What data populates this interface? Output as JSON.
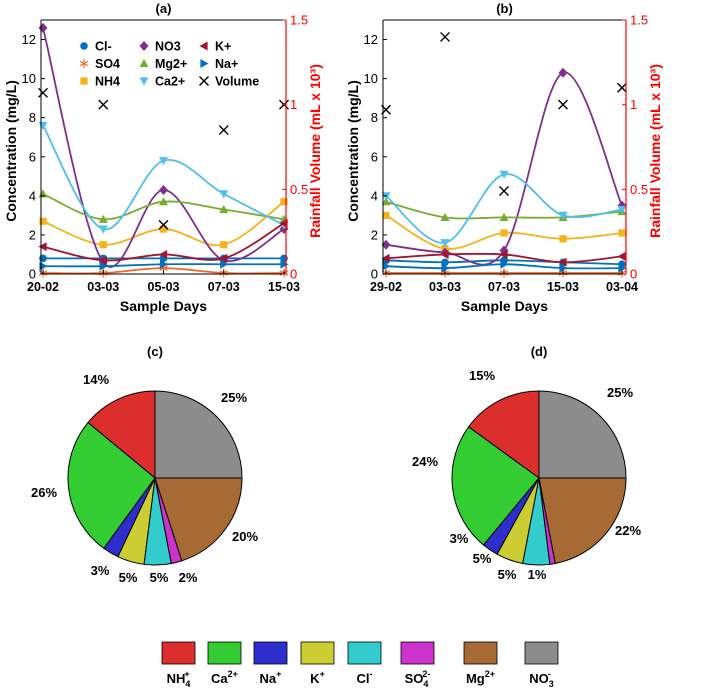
{
  "chart_data": [
    {
      "panel": "(a)",
      "type": "line",
      "title": "(a)",
      "xlabel": "Sample Days",
      "ylabel": "Concentration (mg/L)",
      "y2label": "Rainfall Volume (mL x 10³)",
      "categories": [
        "20-02",
        "03-03",
        "05-03",
        "07-03",
        "15-03"
      ],
      "ylim": [
        0,
        13
      ],
      "yticks": [
        0,
        2,
        4,
        6,
        8,
        10,
        12
      ],
      "y2lim": [
        0,
        1.5
      ],
      "y2ticks": [
        0,
        0.5,
        1,
        1.5
      ],
      "y2ticklabels": [
        "0",
        "0.5",
        "1",
        "1.5"
      ],
      "legend": "top",
      "series": [
        {
          "name": "Cl-",
          "values": [
            0.8,
            0.8,
            0.8,
            0.8,
            0.8
          ]
        },
        {
          "name": "SO4",
          "values": [
            0.05,
            0.05,
            0.3,
            0.05,
            0.05
          ]
        },
        {
          "name": "NH4",
          "values": [
            2.7,
            1.5,
            2.3,
            1.5,
            3.7
          ]
        },
        {
          "name": "NO3",
          "values": [
            12.6,
            0.6,
            4.3,
            0.7,
            2.3
          ]
        },
        {
          "name": "Mg2+",
          "values": [
            4.1,
            2.8,
            3.7,
            3.3,
            2.8
          ]
        },
        {
          "name": "Ca2+",
          "values": [
            7.6,
            2.3,
            5.8,
            4.1,
            2.5
          ]
        },
        {
          "name": "K+",
          "values": [
            1.4,
            0.7,
            1.0,
            0.8,
            2.6
          ]
        },
        {
          "name": "Na+",
          "values": [
            0.4,
            0.4,
            0.5,
            0.5,
            0.5
          ]
        },
        {
          "name": "Volume",
          "axis": "right",
          "values": [
            1.07,
            1.0,
            0.29,
            0.85,
            1.0
          ]
        }
      ]
    },
    {
      "panel": "(b)",
      "type": "line",
      "title": "(b)",
      "xlabel": "Sample Days",
      "ylabel": "Concentration (mg/L)",
      "y2label": "Rainfall Volume (mL x 10³)",
      "categories": [
        "29-02",
        "03-03",
        "07-03",
        "15-03",
        "03-04"
      ],
      "ylim": [
        0,
        13
      ],
      "yticks": [
        0,
        2,
        4,
        6,
        8,
        10,
        12
      ],
      "y2lim": [
        0,
        1.5
      ],
      "y2ticks": [
        0,
        0.5,
        1,
        1.5
      ],
      "y2ticklabels": [
        "0",
        "0.5",
        "1",
        "1.5"
      ],
      "series": [
        {
          "name": "Cl-",
          "values": [
            0.7,
            0.6,
            0.7,
            0.6,
            0.5
          ]
        },
        {
          "name": "SO4",
          "values": [
            0.05,
            0.05,
            0.05,
            0.05,
            0.05
          ]
        },
        {
          "name": "NH4",
          "values": [
            3.0,
            1.3,
            2.1,
            1.8,
            2.1
          ]
        },
        {
          "name": "NO3",
          "values": [
            1.5,
            1.1,
            1.2,
            10.3,
            3.5
          ]
        },
        {
          "name": "Mg2+",
          "values": [
            3.7,
            2.9,
            2.9,
            2.9,
            3.2
          ]
        },
        {
          "name": "Ca2+",
          "values": [
            4.0,
            1.6,
            5.1,
            3.0,
            3.3
          ]
        },
        {
          "name": "K+",
          "values": [
            0.8,
            1.0,
            1.0,
            0.6,
            0.9
          ]
        },
        {
          "name": "Na+",
          "values": [
            0.4,
            0.3,
            0.5,
            0.3,
            0.3
          ]
        },
        {
          "name": "Volume",
          "axis": "right",
          "values": [
            0.97,
            1.4,
            0.49,
            1.0,
            1.1
          ]
        }
      ]
    },
    {
      "panel": "(c)",
      "type": "pie",
      "title": "(c)",
      "categories": [
        "NH4+",
        "Ca2+",
        "Na+",
        "K+",
        "Cl-",
        "SO4 2-",
        "Mg2+",
        "NO3-"
      ],
      "values": [
        14,
        26,
        3,
        5,
        5,
        2,
        20,
        25
      ],
      "labels": [
        "14%",
        "26%",
        "3%",
        "5%",
        "5%",
        "2%",
        "20%",
        "25%"
      ]
    },
    {
      "panel": "(d)",
      "type": "pie",
      "title": "(d)",
      "categories": [
        "NH4+",
        "Ca2+",
        "Na+",
        "K+",
        "Cl-",
        "SO4 2-",
        "Mg2+",
        "NO3-"
      ],
      "values": [
        15,
        24,
        3,
        5,
        5,
        1,
        22,
        25
      ],
      "labels": [
        "15%",
        "24%",
        "3%",
        "5%",
        "5%",
        "1%",
        "22%",
        "25%"
      ]
    }
  ],
  "series_styles": {
    "Cl-": {
      "color": "#0072BD",
      "marker": "circle"
    },
    "SO4": {
      "color": "#F26522",
      "marker": "asterisk"
    },
    "NH4": {
      "color": "#F5B21B",
      "marker": "square"
    },
    "NO3": {
      "color": "#7E2F8E",
      "marker": "diamond"
    },
    "Mg2+": {
      "color": "#77AC30",
      "marker": "triangle-up"
    },
    "Ca2+": {
      "color": "#4DBEEE",
      "marker": "triangle-down"
    },
    "K+": {
      "color": "#A2142F",
      "marker": "triangle-left"
    },
    "Na+": {
      "color": "#0072BD",
      "marker": "triangle-right"
    },
    "Volume": {
      "color": "#000000",
      "marker": "x"
    }
  },
  "pie_colors": [
    "#DD2E2E",
    "#33CC33",
    "#2E2ECC",
    "#CCCC33",
    "#33CCCC",
    "#CC33CC",
    "#A86A35",
    "#8C8C8C"
  ],
  "axis_colors": {
    "left": "#000000",
    "right": "#FF0000"
  },
  "bottom_legend": [
    {
      "base": "NH",
      "sub": "4",
      "sup": "+"
    },
    {
      "base": "Ca",
      "sub": "",
      "sup": "2+"
    },
    {
      "base": "Na",
      "sub": "",
      "sup": "+"
    },
    {
      "base": "K",
      "sub": "",
      "sup": "+"
    },
    {
      "base": "Cl",
      "sub": "",
      "sup": "-"
    },
    {
      "base": "SO",
      "sub": "4",
      "sup": "2-"
    },
    {
      "base": "Mg",
      "sub": "",
      "sup": "2+"
    },
    {
      "base": "NO",
      "sub": "3",
      "sup": "-"
    }
  ]
}
